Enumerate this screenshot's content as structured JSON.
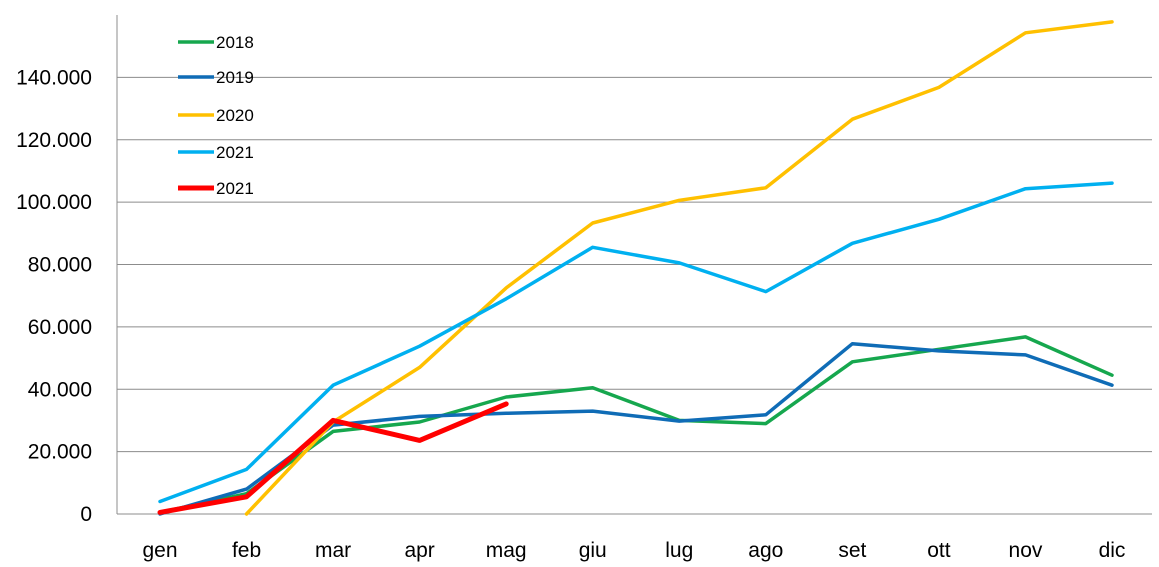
{
  "chart_data": {
    "type": "line",
    "title": "",
    "xlabel": "",
    "ylabel": "",
    "categories": [
      "gen",
      "feb",
      "mar",
      "apr",
      "mag",
      "giu",
      "lug",
      "ago",
      "set",
      "ott",
      "nov",
      "dic"
    ],
    "ylim": [
      0,
      160000
    ],
    "yticks": [
      0,
      20000,
      40000,
      60000,
      80000,
      100000,
      120000,
      140000
    ],
    "ytick_labels": [
      "0",
      "20.000",
      "40.000",
      "60.000",
      "80.000",
      "100.000",
      "120.000",
      "140.000"
    ],
    "grid": "horizontal",
    "legend_position": "top-left",
    "series": [
      {
        "name": "2018",
        "color": "#16A74E",
        "values": [
          500,
          6500,
          26500,
          29500,
          37500,
          40500,
          30000,
          29000,
          48800,
          52800,
          56800,
          44500
        ]
      },
      {
        "name": "2019",
        "color": "#0F6CB6",
        "values": [
          0,
          8000,
          28500,
          31300,
          32300,
          33000,
          29800,
          31800,
          54600,
          52300,
          51000,
          41300
        ]
      },
      {
        "name": "2020",
        "color": "#FFC000",
        "values": [
          null,
          0,
          29500,
          47000,
          72500,
          93300,
          100600,
          104600,
          126600,
          136800,
          154300,
          157800
        ]
      },
      {
        "name": "2021",
        "color": "#00B0F0",
        "values": [
          4000,
          14300,
          41300,
          53800,
          69000,
          85500,
          80500,
          71300,
          86800,
          94500,
          104300,
          106100
        ]
      },
      {
        "name": "2021",
        "color": "#FF0000",
        "values": [
          500,
          5500,
          30000,
          23600,
          35300,
          null,
          null,
          null,
          null,
          null,
          null,
          null
        ]
      }
    ]
  }
}
